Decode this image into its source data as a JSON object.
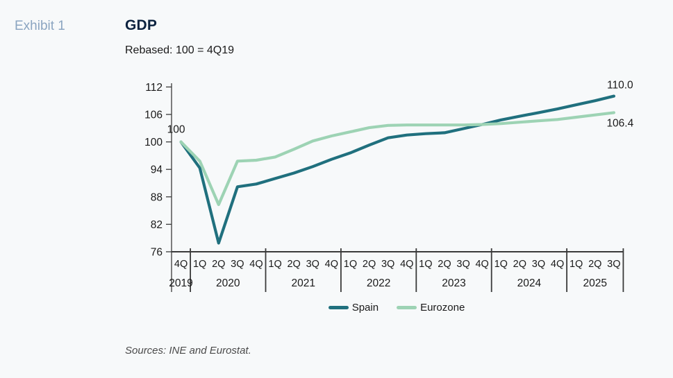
{
  "page": {
    "background": "#f7f9fa"
  },
  "header": {
    "exhibit_label": "Exhibit 1",
    "title": "GDP",
    "subtitle": "Rebased: 100 = 4Q19"
  },
  "footer": {
    "sources": "Sources: INE and Eurostat."
  },
  "chart_data": {
    "type": "line",
    "title": "GDP",
    "subtitle": "Rebased: 100 = 4Q19",
    "x_groups": [
      {
        "year": "2019",
        "quarters": [
          "4Q"
        ]
      },
      {
        "year": "2020",
        "quarters": [
          "1Q",
          "2Q",
          "3Q",
          "4Q"
        ]
      },
      {
        "year": "2021",
        "quarters": [
          "1Q",
          "2Q",
          "3Q",
          "4Q"
        ]
      },
      {
        "year": "2022",
        "quarters": [
          "1Q",
          "2Q",
          "3Q",
          "4Q"
        ]
      },
      {
        "year": "2023",
        "quarters": [
          "1Q",
          "2Q",
          "3Q",
          "4Q"
        ]
      },
      {
        "year": "2024",
        "quarters": [
          "1Q",
          "2Q",
          "3Q",
          "4Q"
        ]
      },
      {
        "year": "2025",
        "quarters": [
          "1Q",
          "2Q",
          "3Q"
        ]
      }
    ],
    "ylim": [
      76,
      112
    ],
    "y_ticks": [
      76,
      82,
      88,
      94,
      100,
      106,
      112
    ],
    "grid": false,
    "legend_position": "bottom",
    "start_label": "100",
    "series": [
      {
        "name": "Spain",
        "color": "#20707e",
        "end_label": "110.0",
        "values": [
          100,
          94.3,
          77.9,
          90.2,
          90.8,
          92.0,
          93.2,
          94.6,
          96.2,
          97.6,
          99.3,
          100.9,
          101.5,
          101.8,
          102.0,
          102.9,
          103.8,
          104.8,
          105.6,
          106.4,
          107.2,
          108.1,
          109.0,
          110.0
        ]
      },
      {
        "name": "Eurozone",
        "color": "#9dd3b4",
        "end_label": "106.4",
        "values": [
          100,
          95.8,
          86.3,
          95.8,
          96.0,
          96.7,
          98.4,
          100.2,
          101.3,
          102.2,
          103.1,
          103.6,
          103.7,
          103.7,
          103.7,
          103.7,
          103.8,
          104.0,
          104.3,
          104.6,
          104.9,
          105.4,
          105.9,
          106.4
        ]
      }
    ],
    "axis_color": "#3a3a3a",
    "label_color": "#1a1a1a"
  }
}
